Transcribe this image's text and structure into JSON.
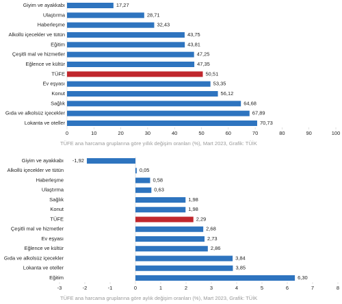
{
  "chart_data": [
    {
      "type": "bar",
      "orientation": "horizontal",
      "categories": [
        "Giyim ve ayakkabı",
        "Ulaştırma",
        "Haberleşme",
        "Alkollü içecekler ve tütün",
        "Eğitim",
        "Çeşitli mal ve hizmetler",
        "Eğlence ve kültür",
        "TÜFE",
        "Ev eşyası",
        "Konut",
        "Sağlık",
        "Gıda ve alkolsüz içecekler",
        "Lokanta ve oteller"
      ],
      "values": [
        17.27,
        28.71,
        32.43,
        43.75,
        43.81,
        47.25,
        47.35,
        50.51,
        53.35,
        56.12,
        64.68,
        67.89,
        70.73
      ],
      "value_labels": [
        "17,27",
        "28,71",
        "32,43",
        "43,75",
        "43,81",
        "47,25",
        "47,35",
        "50,51",
        "53,35",
        "56,12",
        "64,68",
        "67,89",
        "70,73"
      ],
      "colors": [
        "#2e74bf",
        "#2e74bf",
        "#2e74bf",
        "#2e74bf",
        "#2e74bf",
        "#2e74bf",
        "#2e74bf",
        "#c0272d",
        "#2e74bf",
        "#2e74bf",
        "#2e74bf",
        "#2e74bf",
        "#2e74bf"
      ],
      "xlim": [
        0,
        100
      ],
      "xticks": [
        0,
        10,
        20,
        30,
        40,
        50,
        60,
        70,
        80,
        90,
        100
      ],
      "caption": "TÜFE ana harcama gruplarına göre yıllık değişim oranları (%), Mart 2023, Grafik: TÜİK"
    },
    {
      "type": "bar",
      "orientation": "horizontal",
      "categories": [
        "Giyim ve ayakkabı",
        "Alkollü içecekler ve tütün",
        "Haberleşme",
        "Ulaştırma",
        "Sağlık",
        "Konut",
        "TÜFE",
        "Çeşitli mal ve hizmetler",
        "Ev eşyası",
        "Eğlence ve kültür",
        "Gıda ve alkolsüz içecekler",
        "Lokanta ve oteller",
        "Eğitim"
      ],
      "values": [
        -1.92,
        0.05,
        0.58,
        0.63,
        1.98,
        1.98,
        2.29,
        2.68,
        2.73,
        2.86,
        3.84,
        3.85,
        6.3
      ],
      "value_labels": [
        "-1,92",
        "0,05",
        "0,58",
        "0,63",
        "1,98",
        "1,98",
        "2,29",
        "2,68",
        "2,73",
        "2,86",
        "3,84",
        "3,85",
        "6,30"
      ],
      "colors": [
        "#2e74bf",
        "#2e74bf",
        "#2e74bf",
        "#2e74bf",
        "#2e74bf",
        "#2e74bf",
        "#c0272d",
        "#2e74bf",
        "#2e74bf",
        "#2e74bf",
        "#2e74bf",
        "#2e74bf",
        "#2e74bf"
      ],
      "xlim": [
        -3,
        8
      ],
      "xticks": [
        -3,
        -2,
        -1,
        0,
        1,
        2,
        3,
        4,
        5,
        6,
        7,
        8
      ],
      "caption": "TÜFE ana harcama gruplarına göre aylık değişim oranları (%), Mart 2023, Grafik: TÜİK"
    }
  ]
}
